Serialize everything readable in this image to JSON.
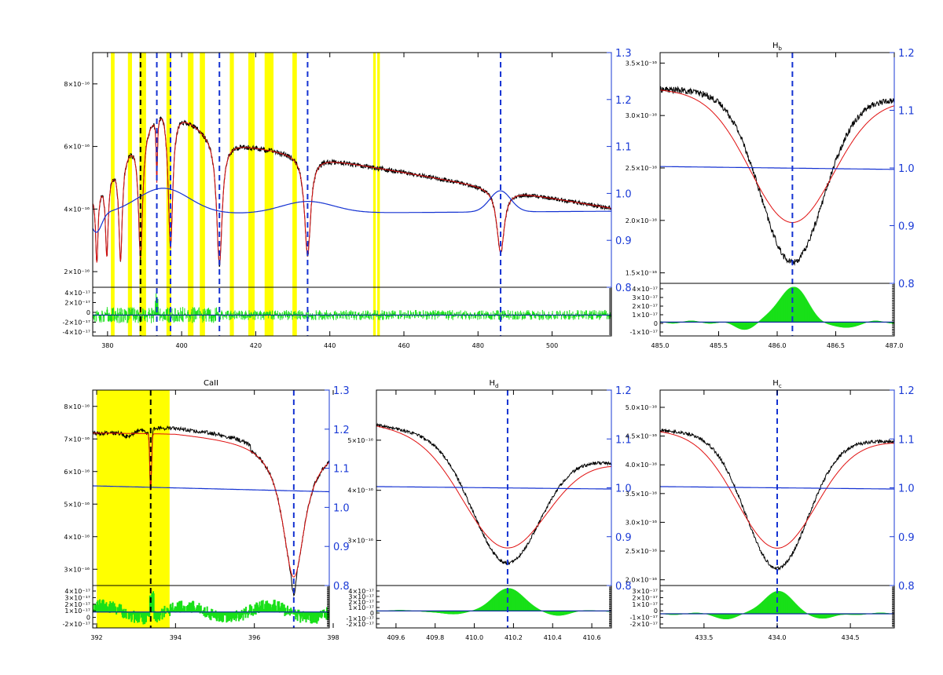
{
  "figure": {
    "background": "#ffffff",
    "colors": {
      "observed": "#000000",
      "model": "#e01010",
      "continuum": "#1432d2",
      "residual": "#18e018",
      "mask": "#ffff00",
      "line_marker": "#1432d2",
      "right_axis": "#1a3ad6"
    }
  },
  "chart_data": [
    {
      "id": "full-spectrum",
      "type": "line",
      "title": "",
      "xlim": [
        376,
        516
      ],
      "ylim": [
        1.5e-16,
        9e-16
      ],
      "y2lim": [
        0.8,
        1.3
      ],
      "x_ticks": [
        "380",
        "400",
        "420",
        "440",
        "460",
        "480",
        "500"
      ],
      "y_ticks": [
        "2×10⁻¹⁶",
        "4×10⁻¹⁶",
        "6×10⁻¹⁶",
        "8×10⁻¹⁶"
      ],
      "y_tick_values": [
        2e-16,
        4e-16,
        6e-16,
        8e-16
      ],
      "y2_ticks": [
        "0.8",
        "0.9",
        "1.0",
        "1.1",
        "1.2",
        "1.3"
      ],
      "mask_bands": [
        [
          380.9,
          381.9
        ],
        [
          385.5,
          386.6
        ],
        [
          388.6,
          390.4
        ],
        [
          395.9,
          397.2
        ],
        [
          401.7,
          403.2
        ],
        [
          404.9,
          406.3
        ],
        [
          413.0,
          414.1
        ],
        [
          418.0,
          419.7
        ],
        [
          422.4,
          424.8
        ],
        [
          429.9,
          431.1
        ],
        [
          451.7,
          452.4
        ],
        [
          452.8,
          453.5
        ]
      ],
      "line_markers": [
        388.9,
        393.3,
        397.0,
        410.2,
        434.0,
        486.1
      ],
      "line_marker_black": [
        388.9
      ],
      "absorption_lines": [
        {
          "center": 377.1,
          "depth": 0.5,
          "width": 0.4
        },
        {
          "center": 379.8,
          "depth": 0.5,
          "width": 0.45
        },
        {
          "center": 383.5,
          "depth": 0.58,
          "width": 0.55
        },
        {
          "center": 388.9,
          "depth": 0.62,
          "width": 0.7
        },
        {
          "center": 393.3,
          "depth": 0.3,
          "width": 0.2
        },
        {
          "center": 397.0,
          "depth": 0.62,
          "width": 0.75
        },
        {
          "center": 410.2,
          "depth": 0.64,
          "width": 0.9
        },
        {
          "center": 434.0,
          "depth": 0.56,
          "width": 1.0
        },
        {
          "center": 486.1,
          "depth": 0.44,
          "width": 1.2
        }
      ],
      "residual_lim": [
        -4.5e-17,
        6e-17
      ],
      "residual_ticks": [
        "4×10⁻¹⁷",
        "2×10⁻¹⁷",
        "0",
        "-2×10⁻¹⁷",
        "-4×10⁻¹⁷"
      ],
      "series": [
        {
          "role": "observed"
        },
        {
          "role": "model"
        },
        {
          "role": "continuum"
        },
        {
          "role": "residual"
        }
      ]
    },
    {
      "id": "h-beta",
      "type": "line",
      "title": "H",
      "title_sub": "b",
      "xlim": [
        485.0,
        487.0
      ],
      "ylim": [
        1.4e-16,
        3.6e-16
      ],
      "y2lim": [
        0.8,
        1.2
      ],
      "x_ticks": [
        "485.0",
        "485.5",
        "486.0",
        "486.5",
        "487.0"
      ],
      "x_tick_values": [
        485.0,
        485.5,
        486.0,
        486.5,
        487.0
      ],
      "y_ticks": [
        "1.5×10⁻¹⁶",
        "2.0×10⁻¹⁶",
        "2.5×10⁻¹⁶",
        "3.0×10⁻¹⁶",
        "3.5×10⁻¹⁶"
      ],
      "y_tick_values": [
        1.5e-16,
        2e-16,
        2.5e-16,
        3e-16,
        3.5e-16
      ],
      "y2_ticks": [
        "0.8",
        "0.9",
        "1.0",
        "1.1",
        "1.2"
      ],
      "line_markers": [
        486.13
      ],
      "line_center": 486.13,
      "continuum_level": 2.56e-16,
      "obs_min": 1.6e-16,
      "model_min": 1.98e-16,
      "obs_width": 0.38,
      "model_width": 0.5,
      "edge_left": 3.25e-16,
      "edge_right": 3.15e-16,
      "residual_lim": [
        -1.5e-17,
        4.2e-17
      ],
      "residual_ticks": [
        "4×10⁻¹⁷",
        "3×10⁻¹⁷",
        "2×10⁻¹⁷",
        "1×10⁻¹⁷",
        "0",
        "-1×10⁻¹⁷"
      ],
      "residual_peak": 3.8e-17
    },
    {
      "id": "ca-ii",
      "type": "line",
      "title": "CaII",
      "xlim": [
        391.9,
        397.9
      ],
      "ylim": [
        2.5e-16,
        8.5e-16
      ],
      "y2lim": [
        0.8,
        1.3
      ],
      "x_ticks": [
        "392",
        "394",
        "396",
        "398"
      ],
      "x_tick_values": [
        392.0,
        394.0,
        396.0,
        398.0
      ],
      "y_ticks": [
        "3×10⁻¹⁶",
        "4×10⁻¹⁶",
        "5×10⁻¹⁶",
        "6×10⁻¹⁶",
        "7×10⁻¹⁶",
        "8×10⁻¹⁶"
      ],
      "y_tick_values": [
        3e-16,
        4e-16,
        5e-16,
        6e-16,
        7e-16,
        8e-16
      ],
      "y2_ticks": [
        "0.8",
        "0.9",
        "1.0",
        "1.1",
        "1.2",
        "1.3"
      ],
      "mask_bands": [
        [
          392.0,
          393.85
        ]
      ],
      "line_markers": [
        393.37,
        397.0
      ],
      "line_marker_black": [
        393.37
      ],
      "residual_lim": [
        -3e-17,
        5e-17
      ],
      "residual_ticks": [
        "4×10⁻¹⁷",
        "3×10⁻¹⁷",
        "2×10⁻¹⁷",
        "1×10⁻¹⁷",
        "0",
        "-2×10⁻¹⁷"
      ]
    },
    {
      "id": "h-delta",
      "type": "line",
      "title": "H",
      "title_sub": "d",
      "xlim": [
        409.5,
        410.7
      ],
      "ylim": [
        2.1e-16,
        6e-16
      ],
      "y2lim": [
        0.8,
        1.2
      ],
      "x_ticks": [
        "409.6",
        "409.8",
        "410.0",
        "410.2",
        "410.4",
        "410.6"
      ],
      "x_tick_values": [
        409.6,
        409.8,
        410.0,
        410.2,
        410.4,
        410.6
      ],
      "y_ticks": [
        "3×10⁻¹⁶",
        "4×10⁻¹⁶",
        "5×10⁻¹⁶"
      ],
      "y_tick_values": [
        3e-16,
        4e-16,
        5e-16
      ],
      "y2_ticks": [
        "0.8",
        "0.9",
        "1.0",
        "1.1",
        "1.2"
      ],
      "line_markers": [
        410.17
      ],
      "line_center": 410.17,
      "continuum_level": 4e-16,
      "obs_min": 2.55e-16,
      "model_min": 2.85e-16,
      "obs_width": 0.24,
      "model_width": 0.3,
      "edge_left": 5.3e-16,
      "edge_right": 4.55e-16,
      "residual_lim": [
        -3e-17,
        4.5e-17
      ],
      "residual_ticks": [
        "4×10⁻¹⁷",
        "3×10⁻¹⁷",
        "2×10⁻¹⁷",
        "1×10⁻¹⁷",
        "0",
        "-1×10⁻¹⁷",
        "-2×10⁻¹⁷"
      ],
      "residual_peak": 4e-17
    },
    {
      "id": "h-gamma",
      "type": "line",
      "title": "H",
      "title_sub": "c",
      "xlim": [
        433.2,
        434.8
      ],
      "ylim": [
        1.9e-16,
        5.3e-16
      ],
      "y2lim": [
        0.8,
        1.2
      ],
      "x_ticks": [
        "433.5",
        "434.0",
        "434.5"
      ],
      "x_tick_values": [
        433.5,
        434.0,
        434.5
      ],
      "y_ticks": [
        "2.0×10⁻¹⁶",
        "2.5×10⁻¹⁶",
        "3.0×10⁻¹⁶",
        "3.5×10⁻¹⁶",
        "4.0×10⁻¹⁶",
        "4.5×10⁻¹⁶",
        "5.0×10⁻¹⁶"
      ],
      "y_tick_values": [
        2e-16,
        2.5e-16,
        3e-16,
        3.5e-16,
        4e-16,
        4.5e-16,
        5e-16
      ],
      "y2_ticks": [
        "0.8",
        "0.9",
        "1.0",
        "1.1",
        "1.2"
      ],
      "line_markers": [
        434.0
      ],
      "line_center": 434.0,
      "continuum_level": 3.65e-16,
      "obs_min": 2.2e-16,
      "model_min": 2.55e-16,
      "obs_width": 0.3,
      "model_width": 0.38,
      "edge_left": 4.6e-16,
      "edge_right": 4.4e-16,
      "residual_lim": [
        -2e-17,
        4e-17
      ],
      "residual_ticks": [
        "3×10⁻¹⁷",
        "2×10⁻¹⁷",
        "1×10⁻¹⁷",
        "0",
        "-1×10⁻¹⁷",
        "-2×10⁻¹⁷"
      ],
      "residual_peak": 3.2e-17
    }
  ]
}
